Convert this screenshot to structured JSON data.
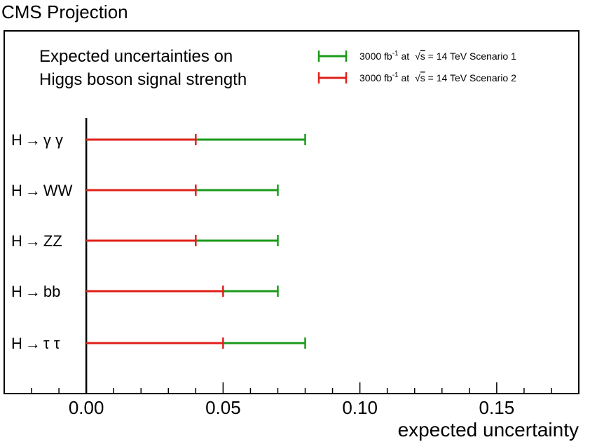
{
  "chart_data": {
    "type": "bar",
    "orientation": "horizontal",
    "header": "CMS Projection",
    "title_lines": [
      "Expected uncertainties on",
      "Higgs boson signal strength"
    ],
    "xlabel": "expected uncertainty",
    "xlim": [
      -0.03,
      0.18
    ],
    "xticks": [
      "0.00",
      "0.05",
      "0.10",
      "0.15"
    ],
    "xtick_values": [
      0.0,
      0.05,
      0.1,
      0.15
    ],
    "categories": [
      "H→γγ",
      "H→WW",
      "H→ZZ",
      "H→bb",
      "H→ττ"
    ],
    "category_labels": [
      {
        "prefix": "H",
        "arrow": "→",
        "suffix": "γ γ"
      },
      {
        "prefix": "H",
        "arrow": "→",
        "suffix": "WW"
      },
      {
        "prefix": "H",
        "arrow": "→",
        "suffix": "ZZ"
      },
      {
        "prefix": "H",
        "arrow": "→",
        "suffix": "bb"
      },
      {
        "prefix": "H",
        "arrow": "→",
        "suffix": "τ τ"
      }
    ],
    "series": [
      {
        "name": "3000 fb⁻¹ at √s = 14 TeV Scenario 1",
        "color": "#1a9a1a",
        "values": [
          0.08,
          0.07,
          0.07,
          0.07,
          0.08
        ]
      },
      {
        "name": "3000 fb⁻¹ at √s = 14 TeV Scenario 2",
        "color": "#e0201b",
        "values": [
          0.04,
          0.04,
          0.04,
          0.05,
          0.05
        ]
      }
    ],
    "legend": {
      "position": "top-right",
      "entries": [
        {
          "lumi": "3000 fb",
          "sup": "-1",
          "at": " at ",
          "sqrt": "s",
          "rest": " = 14 TeV Scenario 1"
        },
        {
          "lumi": "3000 fb",
          "sup": "-1",
          "at": " at ",
          "sqrt": "s",
          "rest": " = 14 TeV Scenario 2"
        }
      ]
    },
    "grid": false
  }
}
